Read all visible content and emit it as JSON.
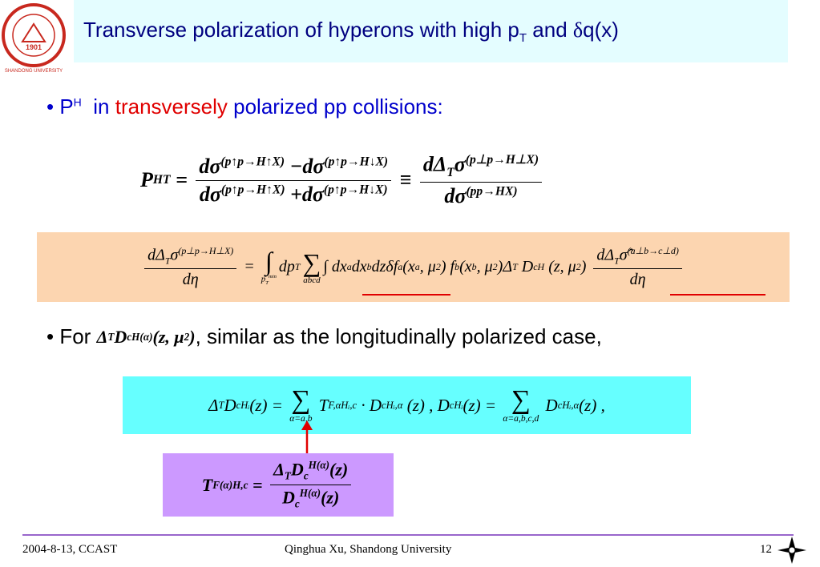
{
  "logo": {
    "ring": "SHANDONG UNIVERSITY",
    "year": "1901"
  },
  "header": {
    "title": "Transverse polarization of hyperons with high p",
    "title_sub": "T",
    "title_and": " and ",
    "title_delta": "δ",
    "title_end": "q(x)"
  },
  "bullet1": {
    "p": "P",
    "h": "H",
    "in": "in",
    "transversely": "transversely",
    "rest": "polarized pp collisions:"
  },
  "eq1": [
    {
      "t": "P"
    },
    {
      "t": "H",
      "k": "sup"
    },
    {
      "t": "T",
      "k": "sub"
    },
    {
      "t": " = "
    },
    {
      "frac": {
        "num": [
          {
            "t": "dσ"
          },
          {
            "t": "(p↑p→H↑X)",
            "k": "sup"
          },
          {
            "t": " −dσ"
          },
          {
            "t": "(p↑p→H↓X)",
            "k": "sup"
          }
        ],
        "den": [
          {
            "t": "dσ"
          },
          {
            "t": "(p↑p→H↑X)",
            "k": "sup"
          },
          {
            "t": " +dσ"
          },
          {
            "t": "(p↑p→H↓X)",
            "k": "sup"
          }
        ]
      }
    },
    {
      "t": " ≡ "
    },
    {
      "frac": {
        "num": [
          {
            "t": "dΔ"
          },
          {
            "t": "T",
            "k": "sub"
          },
          {
            "t": "σ"
          },
          {
            "t": "(p⊥p→H⊥X)",
            "k": "sup"
          }
        ],
        "den": [
          {
            "t": "dσ"
          },
          {
            "t": "(pp→HX)",
            "k": "sup"
          }
        ]
      }
    }
  ],
  "eq2": [
    {
      "frac": {
        "num": [
          {
            "t": "dΔ"
          },
          {
            "t": "T",
            "k": "sub"
          },
          {
            "t": "σ"
          },
          {
            "t": "(p⊥p→H⊥X)",
            "k": "sup"
          }
        ],
        "den": [
          {
            "t": "dη"
          }
        ]
      }
    },
    {
      "t": " = "
    },
    {
      "op": "∫",
      "under": [
        {
          "t": "p"
        },
        {
          "t": "T",
          "k": "sub"
        },
        {
          "t": "min",
          "k": "sup"
        }
      ]
    },
    {
      "t": "dp"
    },
    {
      "t": "T",
      "k": "sub"
    },
    {
      "op": "∑",
      "under": [
        {
          "t": "abcd"
        }
      ]
    },
    {
      "t": "∫ dx"
    },
    {
      "t": "a",
      "k": "sub"
    },
    {
      "t": "dx"
    },
    {
      "t": "b",
      "k": "sub"
    },
    {
      "t": "dzδf"
    },
    {
      "t": "a",
      "k": "sub"
    },
    {
      "t": "(x"
    },
    {
      "t": "a",
      "k": "sub"
    },
    {
      "t": ", μ"
    },
    {
      "t": "2",
      "k": "sup"
    },
    {
      "t": ") f"
    },
    {
      "t": "b",
      "k": "sub"
    },
    {
      "t": "(x"
    },
    {
      "t": "b",
      "k": "sub"
    },
    {
      "t": ", μ"
    },
    {
      "t": "2",
      "k": "sup"
    },
    {
      "t": ")Δ"
    },
    {
      "t": "T",
      "k": "sub"
    },
    {
      "t": " D"
    },
    {
      "t": "c",
      "k": "sub"
    },
    {
      "t": "H",
      "k": "sup"
    },
    {
      "t": " (z, μ"
    },
    {
      "t": "2",
      "k": "sup"
    },
    {
      "t": ") "
    },
    {
      "frac": {
        "num": [
          {
            "t": "dΔ"
          },
          {
            "t": "T",
            "k": "sub"
          },
          {
            "t": "σ̂"
          },
          {
            "t": "(a⊥b→c⊥d)",
            "k": "sup"
          }
        ],
        "den": [
          {
            "t": "dη"
          }
        ]
      }
    }
  ],
  "bullet2": {
    "for": "For",
    "math": [
      {
        "t": "Δ"
      },
      {
        "t": "T",
        "k": "sub"
      },
      {
        "t": "D"
      },
      {
        "t": "c",
        "k": "sub"
      },
      {
        "t": "H(α)",
        "k": "sup"
      },
      {
        "t": "(z, μ"
      },
      {
        "t": "2",
        "k": "sup"
      },
      {
        "t": ")"
      }
    ],
    "rest": ",  similar as the longitudinally polarized case,"
  },
  "eq3": [
    {
      "t": "Δ"
    },
    {
      "t": "T",
      "k": "sub"
    },
    {
      "t": "D"
    },
    {
      "t": "c",
      "k": "sub"
    },
    {
      "t": "Hᵢ",
      "k": "sup"
    },
    {
      "t": "(z) = "
    },
    {
      "op": "∑",
      "under": [
        {
          "t": "α=a,b"
        }
      ]
    },
    {
      "t": " T"
    },
    {
      "t": "F,α",
      "k": "sup"
    },
    {
      "t": "Hᵢ,c",
      "k": "sub"
    },
    {
      "t": " · D"
    },
    {
      "t": "c",
      "k": "sub"
    },
    {
      "t": "Hᵢ,α",
      "k": "sup"
    },
    {
      "t": " (z) , "
    },
    {
      "t": "D"
    },
    {
      "t": "c",
      "k": "sub"
    },
    {
      "t": "Hᵢ",
      "k": "sup"
    },
    {
      "t": "(z) = "
    },
    {
      "op": "∑",
      "under": [
        {
          "t": "α=a,b,c,d"
        }
      ]
    },
    {
      "t": " D"
    },
    {
      "t": "c",
      "k": "sub"
    },
    {
      "t": "Hᵢ,α",
      "k": "sup"
    },
    {
      "t": "(z) ,"
    }
  ],
  "eq4": [
    {
      "t": "T"
    },
    {
      "t": "F(α)",
      "k": "sup"
    },
    {
      "t": "H,c",
      "k": "sub"
    },
    {
      "t": " = "
    },
    {
      "frac": {
        "num": [
          {
            "t": "Δ"
          },
          {
            "t": "T",
            "k": "sub"
          },
          {
            "t": "D"
          },
          {
            "t": "c",
            "k": "sub"
          },
          {
            "t": "H(α)",
            "k": "sup"
          },
          {
            "t": "(z)"
          }
        ],
        "den": [
          {
            "t": "D"
          },
          {
            "t": "c",
            "k": "sub"
          },
          {
            "t": "H(α)",
            "k": "sup"
          },
          {
            "t": "(z)"
          }
        ]
      }
    }
  ],
  "footer": {
    "date": "2004-8-13,  CCAST",
    "author": "Qinghua Xu, Shandong University",
    "page": "12"
  }
}
